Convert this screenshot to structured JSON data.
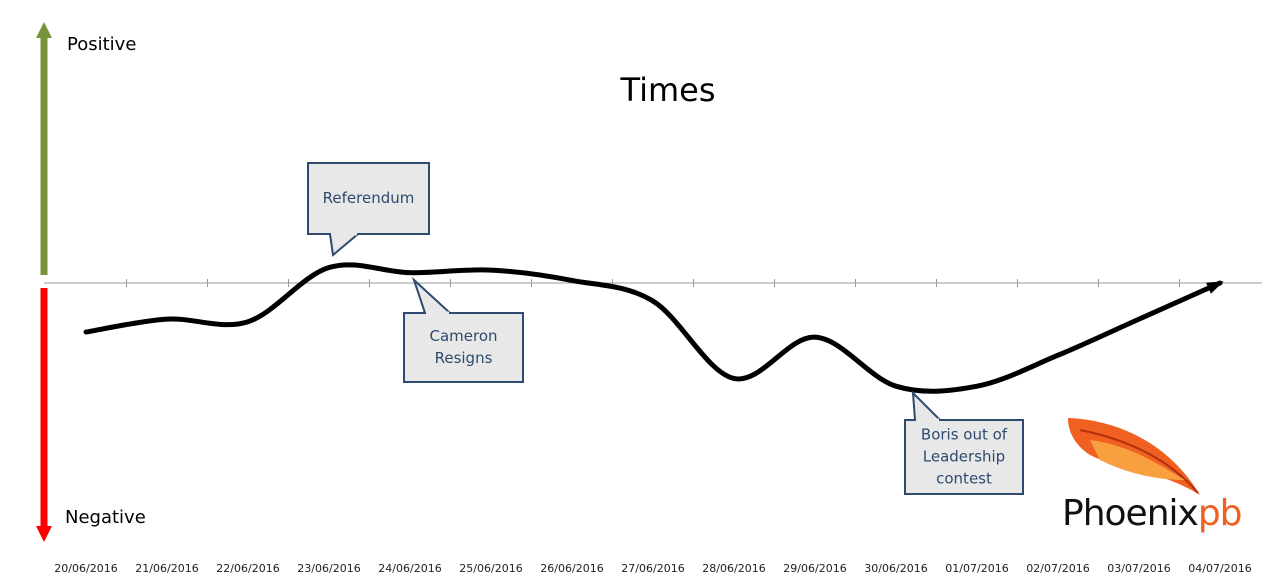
{
  "chart_data": {
    "type": "line",
    "title": "Times",
    "positive_label": "Positive",
    "negative_label": "Negative",
    "categories": [
      "20/06/2016",
      "21/06/2016",
      "22/06/2016",
      "23/06/2016",
      "24/06/2016",
      "25/06/2016",
      "26/06/2016",
      "27/06/2016",
      "28/06/2016",
      "29/06/2016",
      "30/06/2016",
      "01/07/2016",
      "02/07/2016",
      "03/07/2016",
      "04/07/2016"
    ],
    "values": [
      -0.19,
      -0.14,
      -0.15,
      0.06,
      0.04,
      0.05,
      0.01,
      -0.07,
      -0.37,
      -0.21,
      -0.4,
      -0.4,
      -0.28,
      -0.14,
      0
    ],
    "color": "#000000",
    "ylim": [
      -1,
      1
    ],
    "annotations": [
      {
        "lines": [
          "Referendum"
        ]
      },
      {
        "lines": [
          "Cameron",
          "Resigns"
        ]
      },
      {
        "lines": [
          "Boris out of",
          "Leadership",
          "contest"
        ]
      }
    ],
    "logo": {
      "text": "Phoenix",
      "suffix": "pb"
    }
  }
}
